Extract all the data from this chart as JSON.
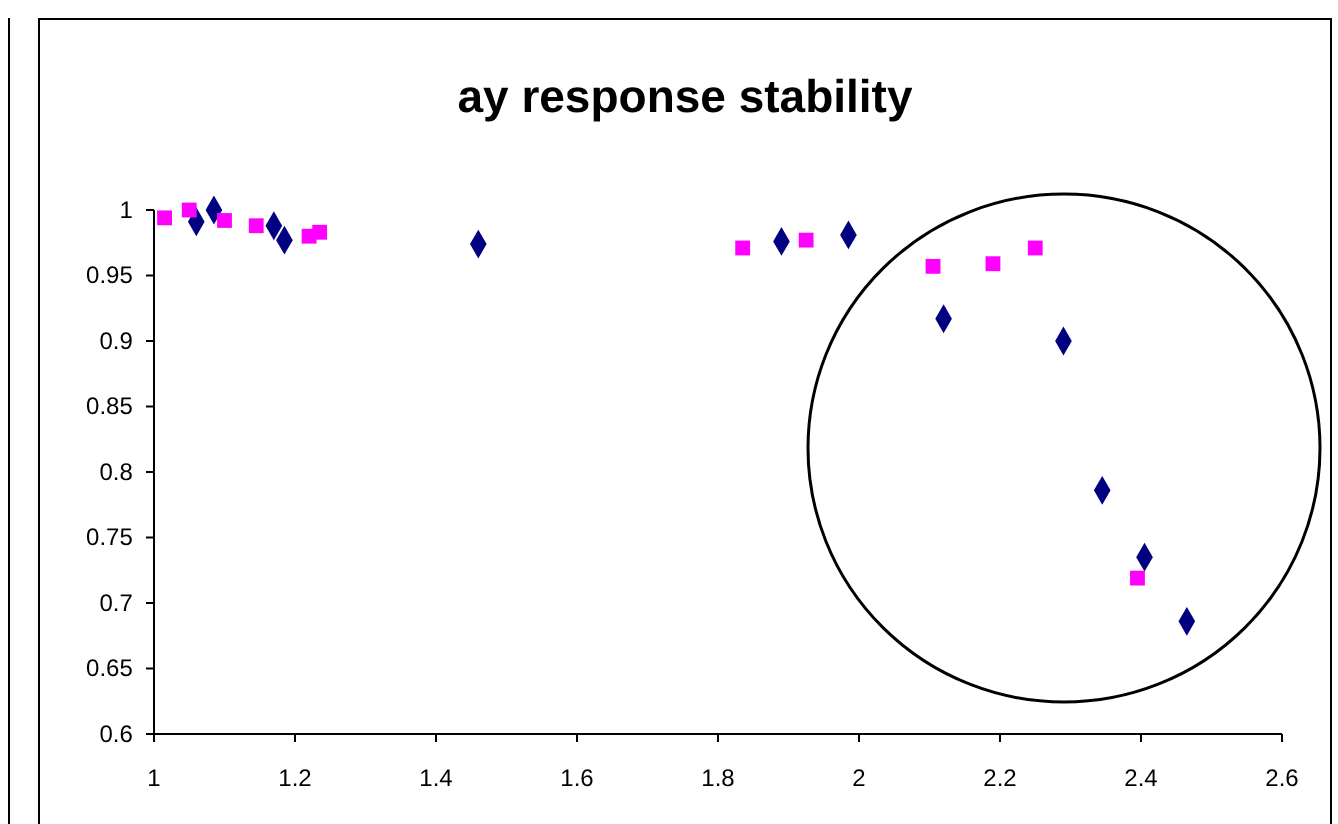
{
  "chart_data": {
    "type": "scatter",
    "title": "ay response stability",
    "xlim": [
      1,
      2.6
    ],
    "xticks": [
      1,
      1.2,
      1.4,
      1.6,
      1.8,
      2,
      2.2,
      2.4,
      2.6
    ],
    "ylim": [
      0.6,
      1.0
    ],
    "yticks": [
      0.6,
      0.65,
      0.7,
      0.75,
      0.8,
      0.85,
      0.9,
      0.95,
      1
    ],
    "grid": false,
    "series": [
      {
        "color": "#000080",
        "marker": "diamond",
        "x": [
          1.06,
          1.085,
          1.17,
          1.185,
          1.46,
          1.89,
          1.985,
          2.12,
          2.29,
          2.345,
          2.405,
          2.465
        ],
        "values": [
          0.991,
          1.0,
          0.988,
          0.977,
          0.974,
          0.976,
          0.981,
          0.917,
          0.9,
          0.786,
          0.735,
          0.686
        ]
      },
      {
        "color": "#ff00ff",
        "marker": "square",
        "x": [
          1.015,
          1.05,
          1.1,
          1.145,
          1.22,
          1.235,
          1.835,
          1.925,
          2.105,
          2.19,
          2.25,
          2.395
        ],
        "values": [
          0.994,
          1.0,
          0.992,
          0.988,
          0.98,
          0.983,
          0.971,
          0.977,
          0.957,
          0.959,
          0.971,
          0.719
        ]
      }
    ]
  }
}
